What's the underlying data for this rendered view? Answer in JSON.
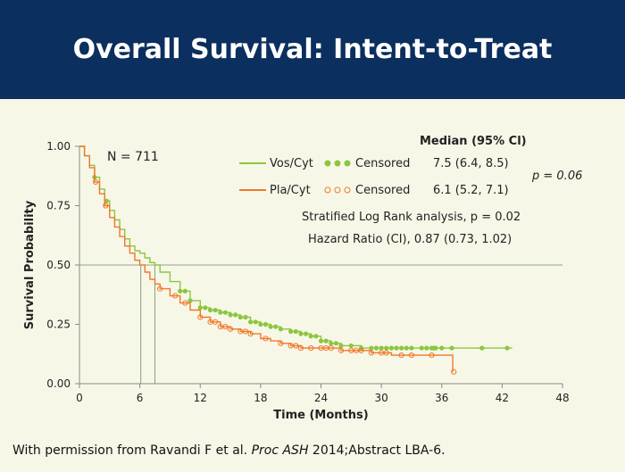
{
  "header": {
    "title": "Overall Survival: Intent-to-Treat"
  },
  "chart_data": {
    "type": "line",
    "xlabel": "Time (Months)",
    "ylabel": "Survival Probability",
    "xlim": [
      0,
      48
    ],
    "ylim": [
      0,
      1
    ],
    "x_ticks": [
      "0",
      "6",
      "12",
      "18",
      "24",
      "30",
      "36",
      "42",
      "48"
    ],
    "y_ticks": [
      "0.00",
      "0.25",
      "0.50",
      "0.75",
      "1.00"
    ],
    "reference_line_y": 0.5,
    "medians": [
      6.1,
      7.5
    ],
    "annotations": {
      "n": "N = 711",
      "median_header": "Median (95% Cl)",
      "p_value": "p = 0.06",
      "log_rank": "Stratified Log Rank analysis, p = 0.02",
      "hazard_ratio": "Hazard Ratio (CI), 0.87 (0.73, 1.02)",
      "censored_label": "Censored"
    },
    "series": [
      {
        "name": "Vos/Cyt",
        "color": "#8cc63f",
        "marker": "filled-circle",
        "median_text": "7.5  (6.4, 8.5)",
        "x": [
          0,
          0.5,
          1,
          1.5,
          2,
          2.5,
          3,
          3.5,
          4,
          4.5,
          5,
          5.5,
          6,
          6.5,
          7,
          7.5,
          8,
          9,
          10,
          11,
          12,
          13,
          14,
          15,
          16,
          17,
          18,
          19,
          20,
          21,
          22,
          23,
          24,
          25,
          26,
          27,
          28,
          30,
          32,
          34,
          36,
          38,
          40,
          43
        ],
        "y": [
          1.0,
          0.96,
          0.92,
          0.87,
          0.82,
          0.77,
          0.73,
          0.69,
          0.65,
          0.61,
          0.58,
          0.56,
          0.55,
          0.53,
          0.51,
          0.5,
          0.47,
          0.43,
          0.39,
          0.35,
          0.32,
          0.31,
          0.3,
          0.29,
          0.28,
          0.26,
          0.25,
          0.24,
          0.23,
          0.22,
          0.21,
          0.2,
          0.18,
          0.17,
          0.16,
          0.16,
          0.15,
          0.15,
          0.15,
          0.15,
          0.15,
          0.15,
          0.15,
          0.15
        ],
        "censored": [
          1.5,
          2.7,
          10,
          10.5,
          11,
          12,
          12.5,
          13,
          13.5,
          14,
          14.5,
          15,
          15.5,
          16,
          16.5,
          17,
          17.5,
          18,
          18.5,
          19,
          19.5,
          20,
          21,
          21.5,
          22,
          22.5,
          23,
          23.5,
          24,
          24.5,
          25,
          25.5,
          26,
          27,
          28,
          29,
          29.5,
          30,
          30.5,
          31,
          31.5,
          32,
          32.5,
          33,
          34,
          34.5,
          35,
          35.2,
          35.4,
          36,
          37,
          40,
          42.5
        ]
      },
      {
        "name": "Pla/Cyt",
        "color": "#f07828",
        "marker": "open-circle",
        "median_text": "6.1  (5.2, 7.1)",
        "x": [
          0,
          0.5,
          1,
          1.5,
          2,
          2.5,
          3,
          3.5,
          4,
          4.5,
          5,
          5.5,
          6,
          6.5,
          7,
          7.5,
          8,
          9,
          10,
          11,
          12,
          13,
          14,
          15,
          16,
          17,
          18,
          19,
          20,
          21,
          22,
          23,
          24,
          25,
          26,
          27,
          28,
          29,
          30,
          31,
          32,
          33,
          34,
          35,
          36,
          37,
          37.1
        ],
        "y": [
          1.0,
          0.96,
          0.91,
          0.85,
          0.8,
          0.75,
          0.7,
          0.66,
          0.62,
          0.58,
          0.55,
          0.52,
          0.5,
          0.47,
          0.44,
          0.42,
          0.4,
          0.37,
          0.34,
          0.31,
          0.28,
          0.26,
          0.24,
          0.23,
          0.22,
          0.21,
          0.19,
          0.18,
          0.17,
          0.16,
          0.15,
          0.15,
          0.15,
          0.15,
          0.14,
          0.14,
          0.14,
          0.13,
          0.13,
          0.12,
          0.12,
          0.12,
          0.12,
          0.12,
          0.12,
          0.12,
          0.05
        ],
        "censored": [
          1.6,
          2.6,
          8,
          9.5,
          10.5,
          12,
          13,
          13.5,
          14,
          14.5,
          15,
          16,
          16.5,
          17,
          18.5,
          20,
          21,
          21.5,
          22,
          23,
          24,
          24.5,
          25,
          26,
          27,
          27.5,
          28,
          29,
          30,
          30.5,
          32,
          33,
          35,
          37.2
        ]
      }
    ]
  },
  "footer": {
    "prefix": "With permission from Ravandi F et al. ",
    "journal": "Proc ASH",
    "suffix": " 2014;Abstract LBA-6."
  }
}
